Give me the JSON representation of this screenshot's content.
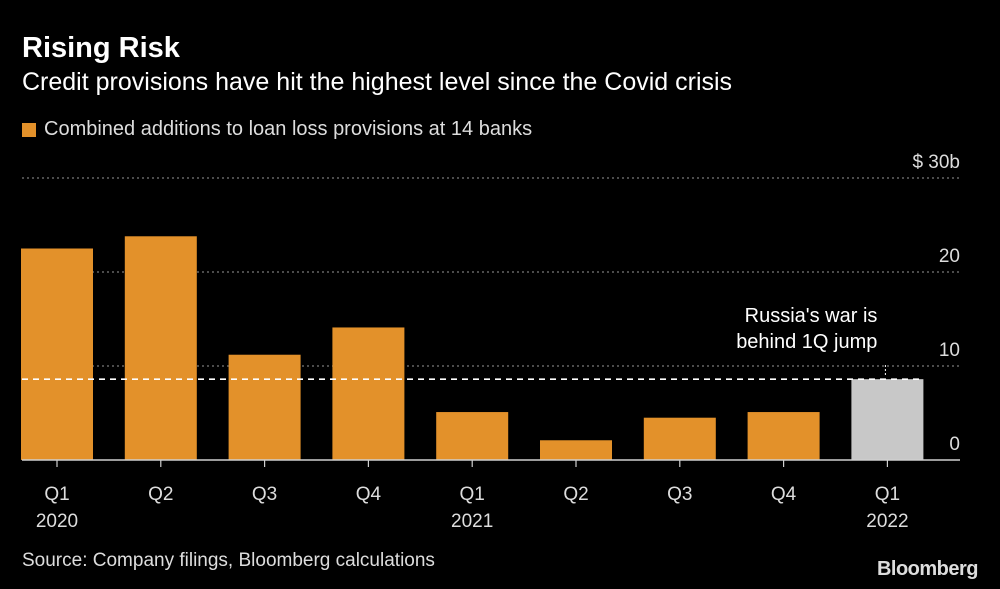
{
  "header": {
    "title": "Rising Risk",
    "subtitle": "Credit provisions have hit the highest level since the Covid crisis"
  },
  "footer": {
    "source": "Source: Company filings, Bloomberg calculations",
    "brand": "Bloomberg"
  },
  "colors": {
    "bar": "#e3912a",
    "highlight_bar": "#c8c8c8",
    "background": "#000000",
    "grid": "#7a7a7a"
  },
  "chart_data": {
    "type": "bar",
    "categories": [
      "Q1",
      "Q2",
      "Q3",
      "Q4",
      "Q1",
      "Q2",
      "Q3",
      "Q4",
      "Q1"
    ],
    "year_labels": [
      "2020",
      "",
      "",
      "",
      "2021",
      "",
      "",
      "",
      "2022"
    ],
    "series": [
      {
        "name": "Combined additions to loan loss provisions at 14 banks",
        "values": [
          22.5,
          23.8,
          11.2,
          14.1,
          5.1,
          2.1,
          4.5,
          5.1,
          8.6
        ]
      }
    ],
    "highlight_index": 8,
    "ylim": [
      0,
      30
    ],
    "yticks": [
      0,
      10,
      20,
      30
    ],
    "ytick_labels": [
      "0",
      "10",
      "20",
      "$ 30b"
    ],
    "grid": true,
    "reference_line": 8.6,
    "annotation": {
      "line1": "Russia's war is",
      "line2": "behind 1Q jump"
    }
  }
}
